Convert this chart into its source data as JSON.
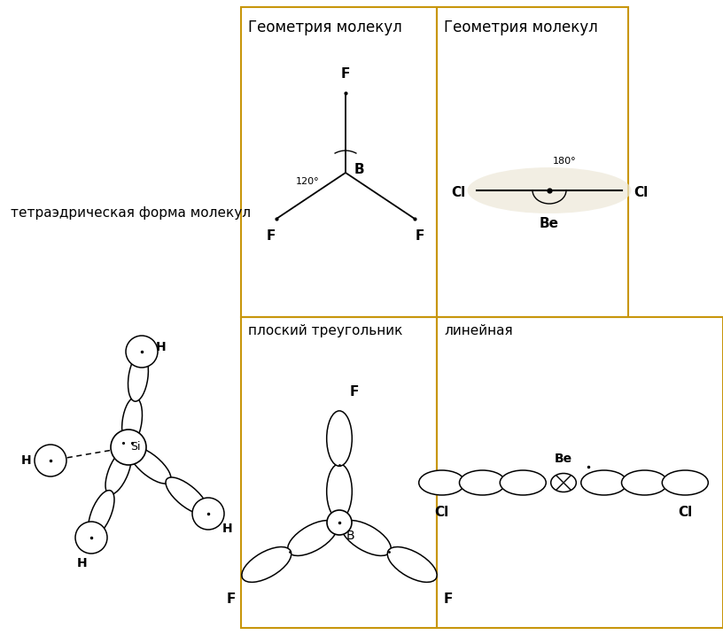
{
  "bg_color": "#ffffff",
  "border_color": "#c8960c",
  "title2": "Геометрия молекул",
  "title3": "Геометрия молекул",
  "label_tetrahedral": "тетраэдрическая форма молекул",
  "label_flat": "плоский треугольник",
  "label_linear": "линейная",
  "bf3_angle": "120°",
  "becl2_angle": "180°",
  "c1": 0.333,
  "c2": 0.606,
  "r1": 0.5
}
